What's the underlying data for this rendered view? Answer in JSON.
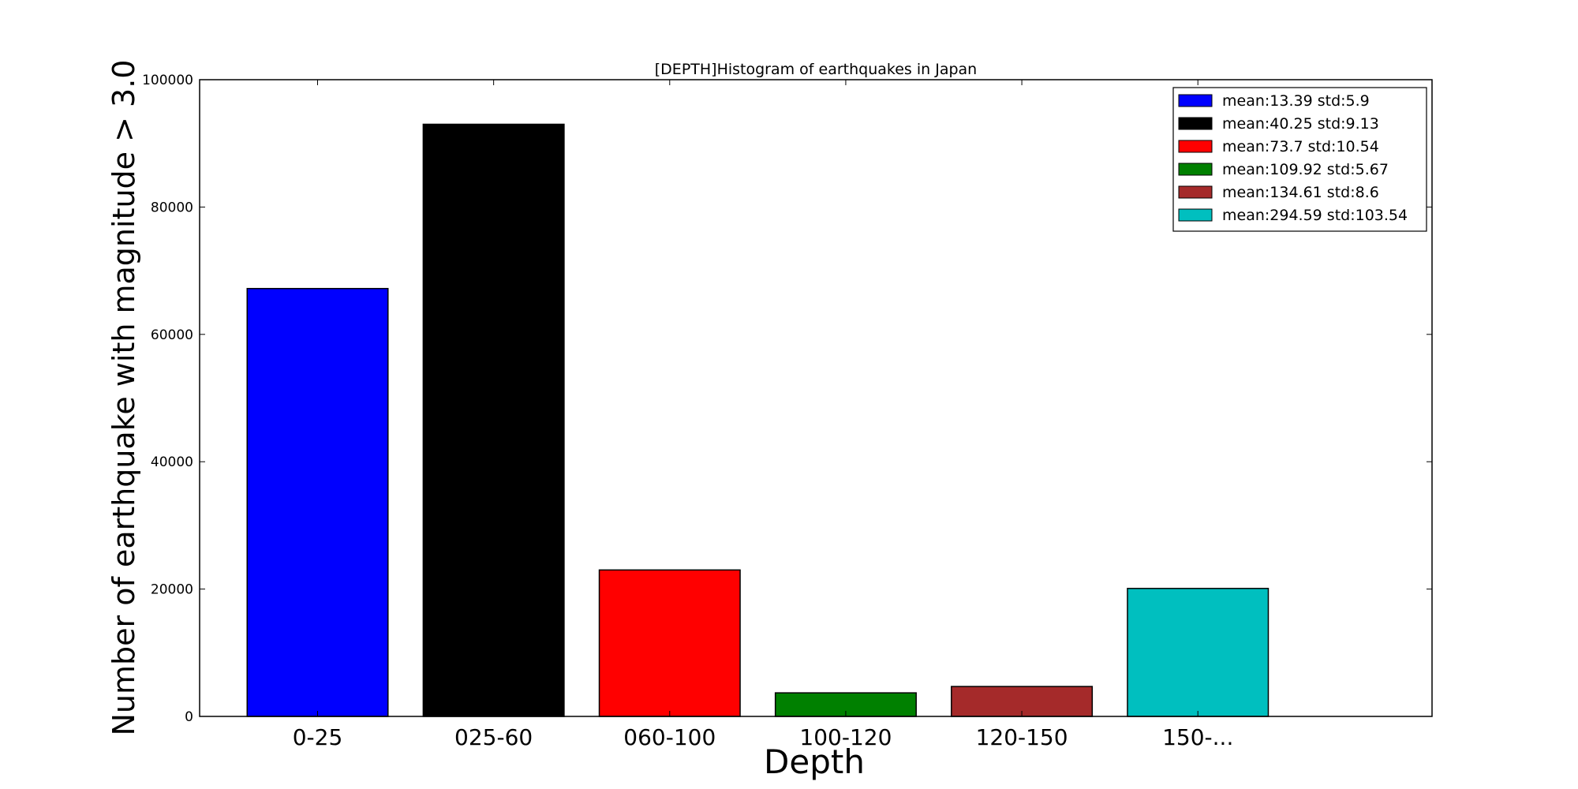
{
  "chart_data": {
    "type": "bar",
    "title": "[DEPTH]Histogram of earthquakes in Japan",
    "xlabel": "Depth",
    "ylabel": "Number of earthquake with magnitude > 3.0",
    "categories": [
      "0-25",
      "025-60",
      "060-100",
      "100-120",
      "120-150",
      "150-..."
    ],
    "values": [
      67200,
      93000,
      23000,
      3700,
      4700,
      20100
    ],
    "colors": [
      "#0000ff",
      "#000000",
      "#ff0000",
      "#008000",
      "#a52a2a",
      "#00bfbf"
    ],
    "ylim": [
      0,
      100000
    ],
    "yticks": [
      "0",
      "20000",
      "40000",
      "60000",
      "80000",
      "100000"
    ],
    "legend": {
      "placement": "top-right",
      "entries": [
        "mean:13.39 std:5.9",
        "mean:40.25 std:9.13",
        "mean:73.7 std:10.54",
        "mean:109.92 std:5.67",
        "mean:134.61 std:8.6",
        "mean:294.59 std:103.54"
      ]
    },
    "grid": false
  }
}
